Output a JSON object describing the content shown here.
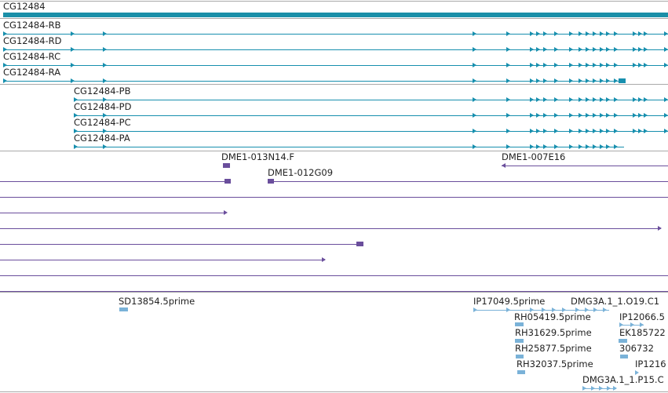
{
  "colors": {
    "gene": "#1a8fa8",
    "transcript": "#178fae",
    "clone": "#6a4e9c",
    "est": "#7ab2d8",
    "separator": "#a9a9a9"
  },
  "gene": {
    "label": "CG12484"
  },
  "transcripts_group1": [
    {
      "label": "CG12484-RB"
    },
    {
      "label": "CG12484-RD"
    },
    {
      "label": "CG12484-RC"
    },
    {
      "label": "CG12484-RA"
    }
  ],
  "transcripts_group2": [
    {
      "label": "CG12484-PB"
    },
    {
      "label": "CG12484-PD"
    },
    {
      "label": "CG12484-PC"
    },
    {
      "label": "CG12484-PA"
    }
  ],
  "clones": [
    {
      "label": "DME1-013N14.F"
    },
    {
      "label": "DME1-007E16"
    },
    {
      "label": "DME1-012G09"
    }
  ],
  "ests": [
    {
      "label": "SD13854.5prime"
    },
    {
      "label": "IP17049.5prime"
    },
    {
      "label": "DMG3A.1_1.O19.C1"
    },
    {
      "label": "RH05419.5prime"
    },
    {
      "label": "IP12066.5"
    },
    {
      "label": "RH31629.5prime"
    },
    {
      "label": "EK185722"
    },
    {
      "label": "RH25877.5prime"
    },
    {
      "label": "306732"
    },
    {
      "label": "RH32037.5prime"
    },
    {
      "label": "IP1216"
    },
    {
      "label": "DMG3A.1_1.P15.C"
    }
  ]
}
